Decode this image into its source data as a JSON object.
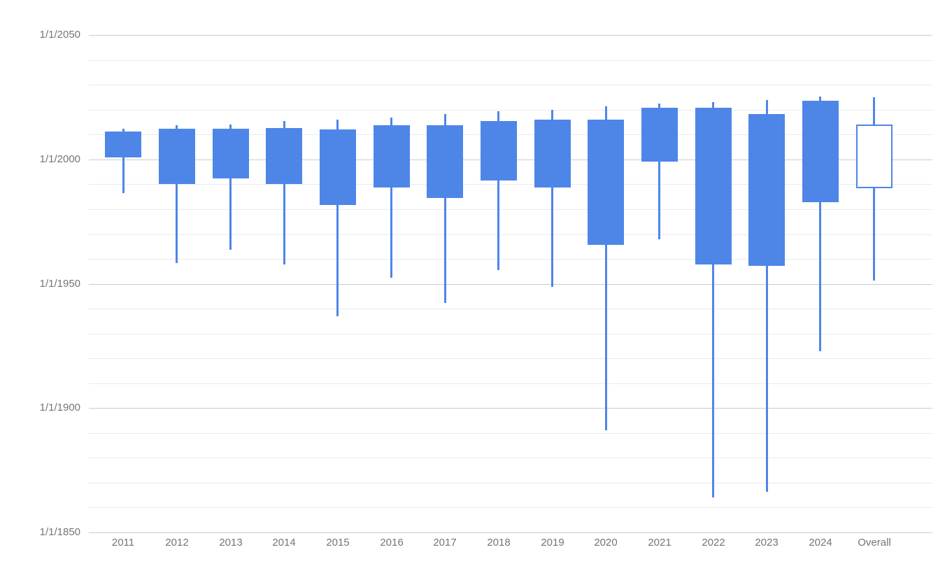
{
  "chart_data": {
    "type": "candlestick",
    "title": "",
    "xlabel": "",
    "ylabel": "",
    "legend_position": "none",
    "grid": true,
    "y_axis": {
      "tick_labels": [
        "1/1/2050",
        "1/1/2000",
        "1/1/1950",
        "1/1/1900",
        "1/1/1850"
      ],
      "tick_years": [
        2050,
        2000,
        1950,
        1900,
        1850
      ],
      "minor_gridline_step_years": 10,
      "range_years": [
        1850,
        2050
      ],
      "values_are_dates": true
    },
    "categories": [
      "2011",
      "2012",
      "2013",
      "2014",
      "2015",
      "2016",
      "2017",
      "2018",
      "2019",
      "2020",
      "2021",
      "2022",
      "2023",
      "2024",
      "Overall"
    ],
    "candles": [
      {
        "label": "2011",
        "low": 1986.4,
        "close": 2001.0,
        "open": 2011.3,
        "high": 2012.3,
        "filled": true
      },
      {
        "label": "2012",
        "low": 1958.4,
        "close": 1990.1,
        "open": 2012.3,
        "high": 2013.7,
        "filled": true
      },
      {
        "label": "2013",
        "low": 1963.8,
        "close": 1992.4,
        "open": 2012.3,
        "high": 2014.1,
        "filled": true
      },
      {
        "label": "2014",
        "low": 1957.7,
        "close": 1990.1,
        "open": 2012.7,
        "high": 2015.4,
        "filled": true
      },
      {
        "label": "2015",
        "low": 1937.0,
        "close": 1981.6,
        "open": 2012.1,
        "high": 2016.0,
        "filled": true
      },
      {
        "label": "2016",
        "low": 1952.4,
        "close": 1988.8,
        "open": 2013.8,
        "high": 2016.9,
        "filled": true
      },
      {
        "label": "2017",
        "low": 1942.3,
        "close": 1984.4,
        "open": 2013.8,
        "high": 2018.3,
        "filled": true
      },
      {
        "label": "2018",
        "low": 1955.5,
        "close": 1991.6,
        "open": 2015.5,
        "high": 2019.4,
        "filled": true
      },
      {
        "label": "2019",
        "low": 1948.8,
        "close": 1988.8,
        "open": 2016.0,
        "high": 2019.9,
        "filled": true
      },
      {
        "label": "2020",
        "low": 1891.1,
        "close": 1965.6,
        "open": 2016.0,
        "high": 2021.4,
        "filled": true
      },
      {
        "label": "2021",
        "low": 1967.9,
        "close": 1999.1,
        "open": 2020.8,
        "high": 2022.5,
        "filled": true
      },
      {
        "label": "2022",
        "low": 1864.1,
        "close": 1957.7,
        "open": 2020.8,
        "high": 2023.0,
        "filled": true
      },
      {
        "label": "2023",
        "low": 1866.3,
        "close": 1957.2,
        "open": 2018.3,
        "high": 2023.9,
        "filled": true
      },
      {
        "label": "2024",
        "low": 1922.9,
        "close": 1982.7,
        "open": 2023.6,
        "high": 2025.3,
        "filled": true
      },
      {
        "label": "Overall",
        "low": 1951.3,
        "open": 1988.4,
        "close": 2014.0,
        "high": 2025.0,
        "filled": false
      }
    ],
    "colors": {
      "candle_fill": "#4e86e8",
      "candle_hollow_fill": "#ffffff",
      "gridline_minor": "#ebebeb",
      "gridline_major": "#cccccc",
      "axis_text": "#757575",
      "background": "#ffffff"
    }
  }
}
